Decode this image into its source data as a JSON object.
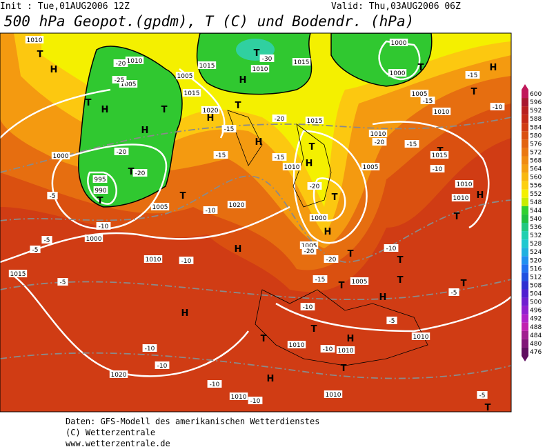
{
  "header": {
    "init": "Init : Tue,01AUG2006 12Z",
    "valid": "Valid: Thu,03AUG2006 06Z",
    "title": "500 hPa Geopot.(gpdm), T (C) und Bodendr. (hPa)"
  },
  "legend": {
    "ticks": [
      600,
      596,
      592,
      588,
      584,
      580,
      576,
      572,
      568,
      564,
      560,
      556,
      552,
      548,
      544,
      540,
      536,
      532,
      528,
      524,
      520,
      516,
      512,
      508,
      504,
      500,
      496,
      492,
      488,
      484,
      480,
      476
    ],
    "colors": [
      "#c0185a",
      "#a81830",
      "#b82020",
      "#c42a18",
      "#d03c14",
      "#da5010",
      "#e26410",
      "#ea7810",
      "#f08c10",
      "#f4a010",
      "#f8b810",
      "#fcd010",
      "#f4f000",
      "#c8ec00",
      "#30d030",
      "#20c040",
      "#20c880",
      "#20d0b0",
      "#20c8d0",
      "#20b0e0",
      "#2090f0",
      "#2070f0",
      "#2050e0",
      "#3030d0",
      "#5020d0",
      "#7020d0",
      "#9020d0",
      "#b020c8",
      "#c020b0",
      "#a02090",
      "#801878",
      "#601060"
    ]
  },
  "map": {
    "labels": [
      "T",
      "H",
      "T",
      "H",
      "T",
      "H",
      "T",
      "T",
      "T",
      "T",
      "H",
      "T",
      "H",
      "H",
      "T",
      "H",
      "T",
      "H",
      "H",
      "T",
      "T",
      "H",
      "T",
      "T",
      "H",
      "T",
      "H",
      "T",
      "T",
      "T",
      "T",
      "H",
      "T",
      "H",
      "T",
      "T",
      "H",
      "T",
      "1010",
      "1010",
      "1005",
      "1005",
      "1015",
      "1010",
      "1015",
      "1000",
      "1000",
      "1005",
      "1010",
      "1015",
      "1020",
      "1015",
      "1010",
      "1005",
      "1010",
      "1000",
      "995",
      "990",
      "1005",
      "1000",
      "1020",
      "1010",
      "1015",
      "1000",
      "1005",
      "1005",
      "1010",
      "1010",
      "1010",
      "1010",
      "1010",
      "1020",
      "1015",
      "1010",
      "1010",
      "-20",
      "-25",
      "-30",
      "-20",
      "-20",
      "-5",
      "-10",
      "-5",
      "-5",
      "-10",
      "-10",
      "-5",
      "-15",
      "-15",
      "-20",
      "-20",
      "-15",
      "-20",
      "-15",
      "-10",
      "-15",
      "-15",
      "-10",
      "-20",
      "-20",
      "-15",
      "-10",
      "-5",
      "-10",
      "-5",
      "-10",
      "-10",
      "-10",
      "-10",
      "-10",
      "-5"
    ]
  },
  "footer": {
    "lines": [
      "Daten: GFS-Modell des amerikanischen Wetterdienstes",
      "(C) Wetterzentrale",
      "www.wetterzentrale.de"
    ]
  }
}
